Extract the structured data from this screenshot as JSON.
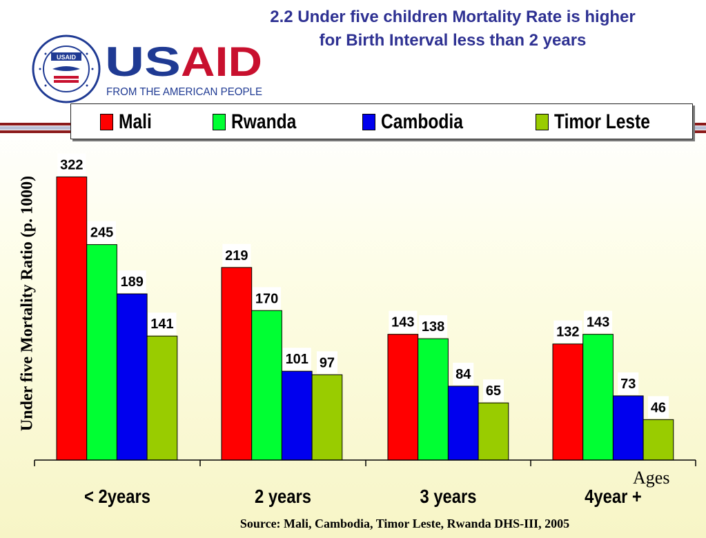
{
  "header": {
    "title_line1": "2.2 Under five children Mortality Rate is higher",
    "title_line2": "for Birth Interval less than 2 years"
  },
  "logo": {
    "wordmark": "USAID",
    "tagline": "FROM THE AMERICAN PEOPLE",
    "seal_text": "UNITED STATES AGENCY INTERNATIONAL DEVELOPMENT",
    "seal_inner": "USAID"
  },
  "source": "Source: Mali, Cambodia, Timor Leste,  Rwanda DHS-III, 2005",
  "colors": {
    "title": "#2e3192",
    "usaid_blue": "#1f3a93",
    "usaid_red": "#c8102e",
    "mali": "#ff0000",
    "rwanda": "#00ff33",
    "cambodia": "#0000ee",
    "timor_leste": "#99cc00"
  },
  "chart_data": {
    "type": "bar",
    "categories": [
      "< 2years",
      "2 years",
      "3 years",
      "4year +"
    ],
    "series": [
      {
        "name": "Mali",
        "color": "#ff0000",
        "values": [
          322,
          219,
          143,
          132
        ]
      },
      {
        "name": "Rwanda",
        "color": "#00ff33",
        "values": [
          245,
          170,
          138,
          143
        ]
      },
      {
        "name": "Cambodia",
        "color": "#0000ee",
        "values": [
          189,
          101,
          84,
          73
        ]
      },
      {
        "name": "Timor Leste",
        "color": "#99cc00",
        "values": [
          141,
          97,
          65,
          46
        ]
      }
    ],
    "data_labels": [
      [
        "322",
        "219",
        "143",
        "132"
      ],
      [
        "245",
        "170",
        "138",
        "143"
      ],
      [
        "189",
        "101",
        "84",
        "73"
      ],
      [
        "141",
        "97",
        "65",
        "46"
      ]
    ],
    "ylabel": "Under five Mortality Ratio (p. 1000)",
    "xlabel": "Ages",
    "ylim": [
      0,
      330
    ],
    "grid": false,
    "legend_position": "top"
  }
}
